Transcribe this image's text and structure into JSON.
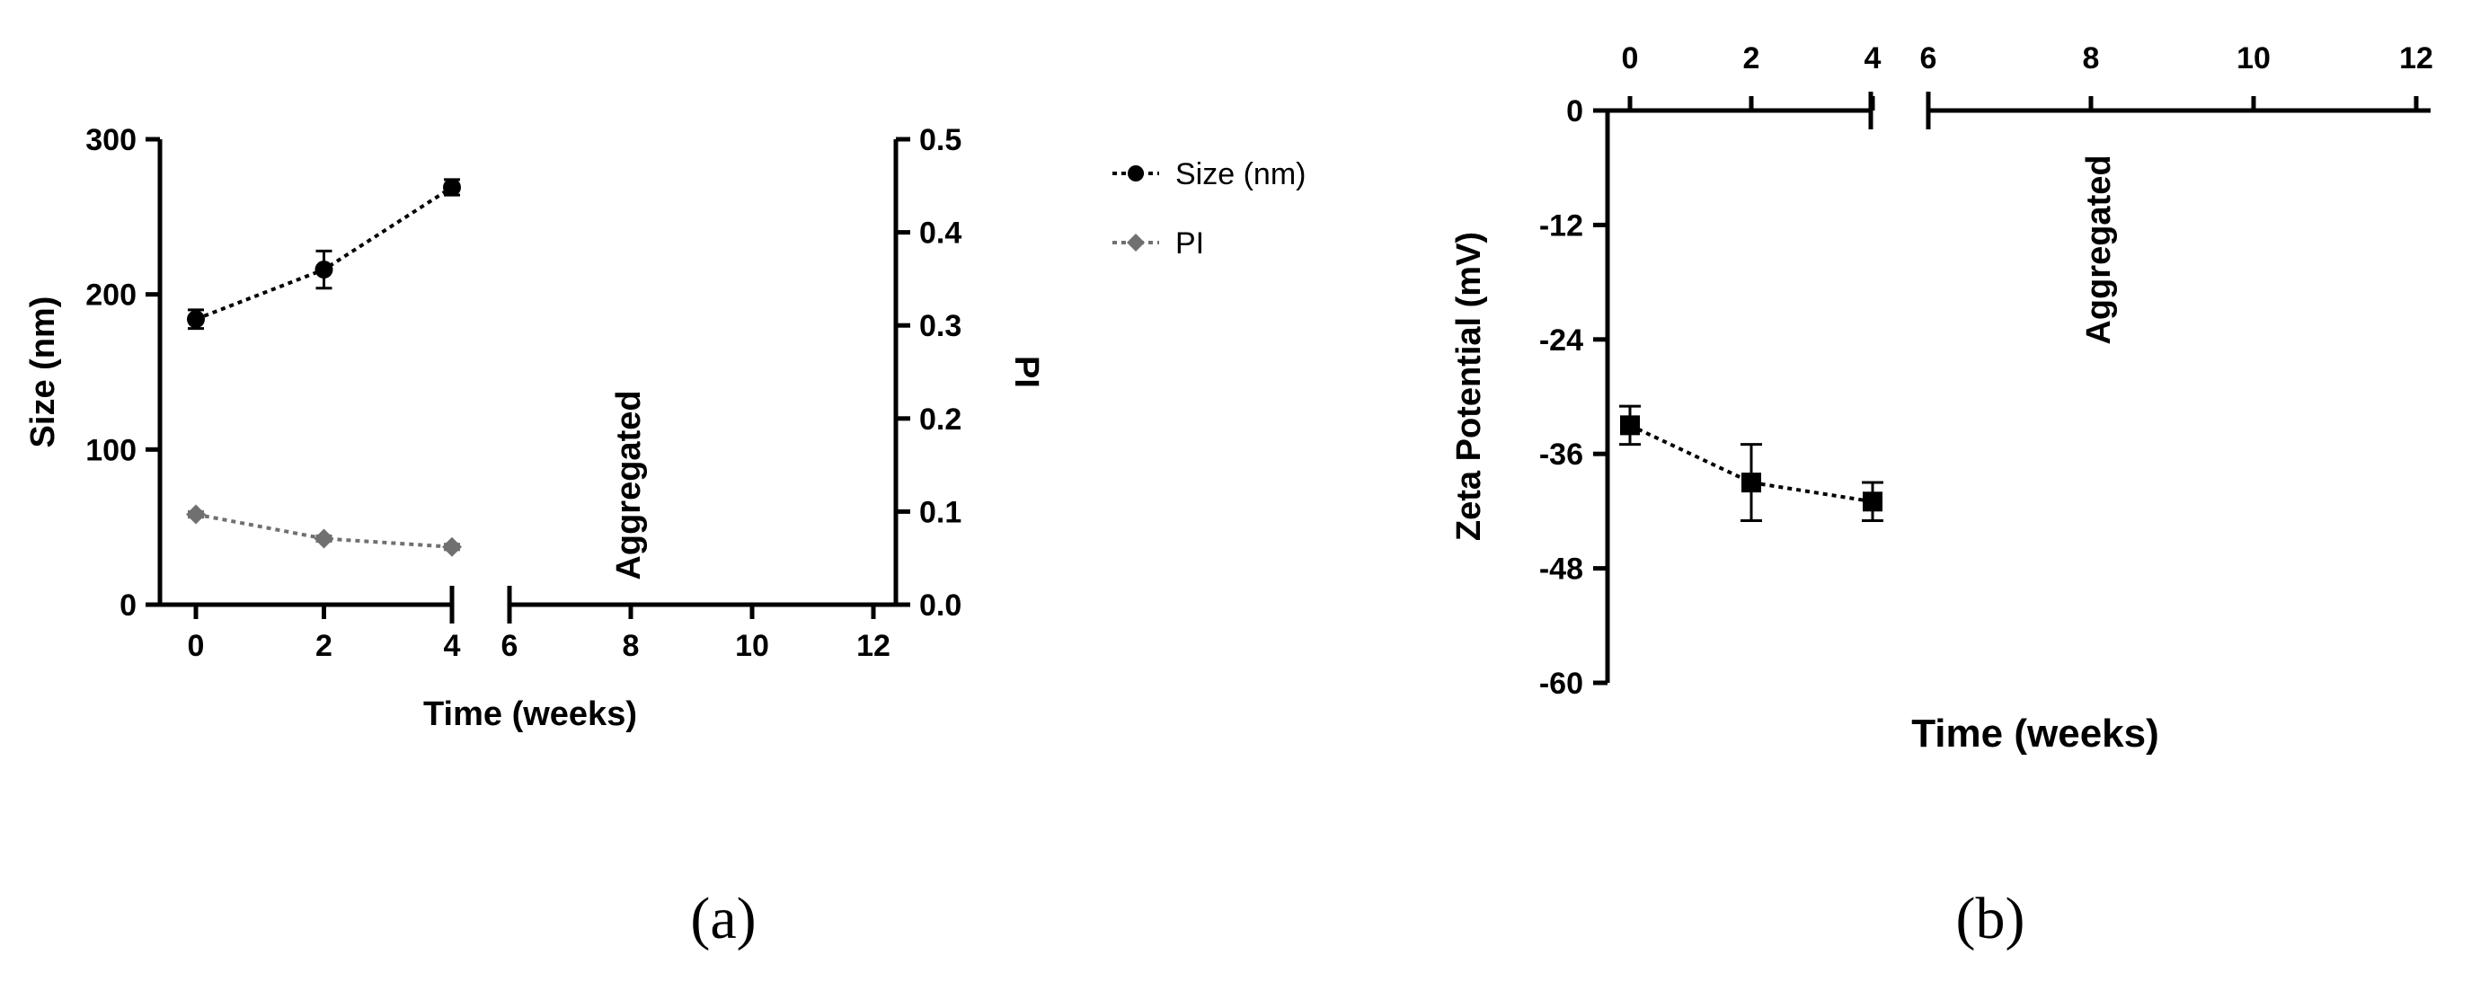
{
  "chart_data": [
    {
      "panel_label": "(a)",
      "type": "line",
      "xlabel": "Time (weeks)",
      "ylabel": "Size (nm)",
      "ylabel_right": "PI",
      "x_ticks": [
        "0",
        "2",
        "4",
        "6",
        "8",
        "10",
        "12"
      ],
      "y_ticks": [
        "0",
        "100",
        "200",
        "300"
      ],
      "y_right_ticks": [
        "0.0",
        "0.1",
        "0.2",
        "0.3",
        "0.4",
        "0.5"
      ],
      "xlim": [
        0,
        12
      ],
      "x_break": [
        4,
        6
      ],
      "ylim": [
        0,
        300
      ],
      "ylim_right": [
        0,
        0.5
      ],
      "annotation": "Aggregated",
      "annotation_x": 8,
      "legend_position": "right",
      "series": [
        {
          "name": "Size (nm)",
          "axis": "left",
          "marker": "circle",
          "color": "#000000",
          "x": [
            0,
            2,
            4
          ],
          "values": [
            184,
            216,
            269
          ],
          "errors": [
            6,
            12,
            5
          ]
        },
        {
          "name": "PI",
          "axis": "right",
          "marker": "diamond",
          "color": "#707070",
          "x": [
            0,
            2,
            4
          ],
          "values": [
            0.097,
            0.071,
            0.062
          ],
          "errors": [
            0.003,
            0.003,
            0.003
          ]
        }
      ]
    },
    {
      "panel_label": "(b)",
      "type": "line",
      "xlabel": "Time (weeks)",
      "ylabel": "Zeta Potential (mV)",
      "x_ticks": [
        "0",
        "2",
        "4",
        "6",
        "8",
        "10",
        "12"
      ],
      "y_ticks": [
        "0",
        "-12",
        "-24",
        "-36",
        "-48",
        "-60"
      ],
      "xlim": [
        0,
        12
      ],
      "x_break": [
        4,
        6
      ],
      "ylim": [
        -60,
        0
      ],
      "x_axis_position": "top",
      "annotation": "Aggregated",
      "annotation_x": 8,
      "series": [
        {
          "marker": "square",
          "color": "#000000",
          "x": [
            0,
            2,
            4
          ],
          "values": [
            -33,
            -39,
            -41
          ],
          "errors": [
            2,
            4,
            2
          ]
        }
      ]
    }
  ]
}
